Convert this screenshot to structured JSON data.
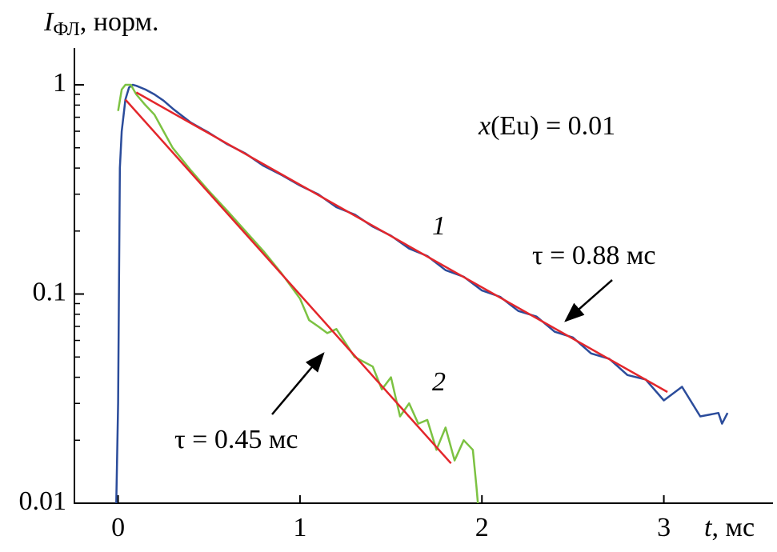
{
  "chart_data": {
    "type": "line",
    "log_y": true,
    "ylabel": {
      "main": "I",
      "sub": "ФЛ",
      "rest": ", норм."
    },
    "xlabel": {
      "main": "t",
      "rest": ", мс"
    },
    "xlim": [
      -0.24,
      3.6
    ],
    "xticks": [
      0,
      1,
      2,
      3
    ],
    "ylim": [
      0.01,
      1.5
    ],
    "yticks": [
      0.01,
      0.1,
      1
    ],
    "yminorticks": [
      0.02,
      0.03,
      0.04,
      0.05,
      0.06,
      0.07,
      0.08,
      0.09,
      0.2,
      0.3,
      0.4,
      0.5,
      0.6,
      0.7,
      0.8,
      0.9
    ],
    "annotation": {
      "var": "x",
      "text": "(Eu) = 0.01"
    },
    "tau_labels": [
      "τ = 0.88 мс",
      "τ = 0.45 мс"
    ],
    "series": [
      {
        "name": "1",
        "color": "#2b4c9b",
        "x": [
          -0.01,
          0.0,
          0.01,
          0.02,
          0.04,
          0.06,
          0.08,
          0.1,
          0.15,
          0.2,
          0.25,
          0.3,
          0.4,
          0.5,
          0.6,
          0.7,
          0.8,
          0.9,
          1.0,
          1.1,
          1.2,
          1.3,
          1.4,
          1.5,
          1.6,
          1.7,
          1.8,
          1.9,
          2.0,
          2.1,
          2.2,
          2.3,
          2.4,
          2.5,
          2.6,
          2.7,
          2.8,
          2.9,
          3.0,
          3.1,
          3.2,
          3.3,
          3.32,
          3.35
        ],
        "values": [
          0.01,
          0.03,
          0.4,
          0.6,
          0.85,
          0.97,
          1.0,
          0.99,
          0.95,
          0.9,
          0.84,
          0.77,
          0.66,
          0.59,
          0.52,
          0.47,
          0.41,
          0.37,
          0.33,
          0.3,
          0.26,
          0.24,
          0.21,
          0.19,
          0.165,
          0.152,
          0.13,
          0.121,
          0.104,
          0.097,
          0.083,
          0.078,
          0.066,
          0.062,
          0.052,
          0.049,
          0.041,
          0.039,
          0.031,
          0.036,
          0.026,
          0.027,
          0.024,
          0.027
        ]
      },
      {
        "name": "2",
        "color": "#7cc242",
        "x": [
          0.0,
          0.02,
          0.04,
          0.07,
          0.1,
          0.15,
          0.2,
          0.25,
          0.3,
          0.4,
          0.5,
          0.6,
          0.7,
          0.8,
          0.9,
          1.0,
          1.05,
          1.1,
          1.15,
          1.2,
          1.3,
          1.4,
          1.45,
          1.5,
          1.55,
          1.6,
          1.65,
          1.7,
          1.75,
          1.8,
          1.85,
          1.9,
          1.95,
          1.97,
          1.98
        ],
        "values": [
          0.75,
          0.95,
          1.0,
          1.0,
          0.9,
          0.8,
          0.72,
          0.6,
          0.5,
          0.39,
          0.31,
          0.25,
          0.2,
          0.16,
          0.125,
          0.095,
          0.075,
          0.07,
          0.065,
          0.068,
          0.05,
          0.045,
          0.035,
          0.04,
          0.026,
          0.03,
          0.024,
          0.025,
          0.018,
          0.023,
          0.016,
          0.02,
          0.018,
          0.012,
          0.0095
        ]
      },
      {
        "color": "#e3262b",
        "x": [
          0.1,
          3.02
        ],
        "values": [
          0.92,
          0.034
        ]
      },
      {
        "color": "#e3262b",
        "x": [
          0.04,
          1.83
        ],
        "values": [
          0.85,
          0.0155
        ]
      }
    ]
  }
}
